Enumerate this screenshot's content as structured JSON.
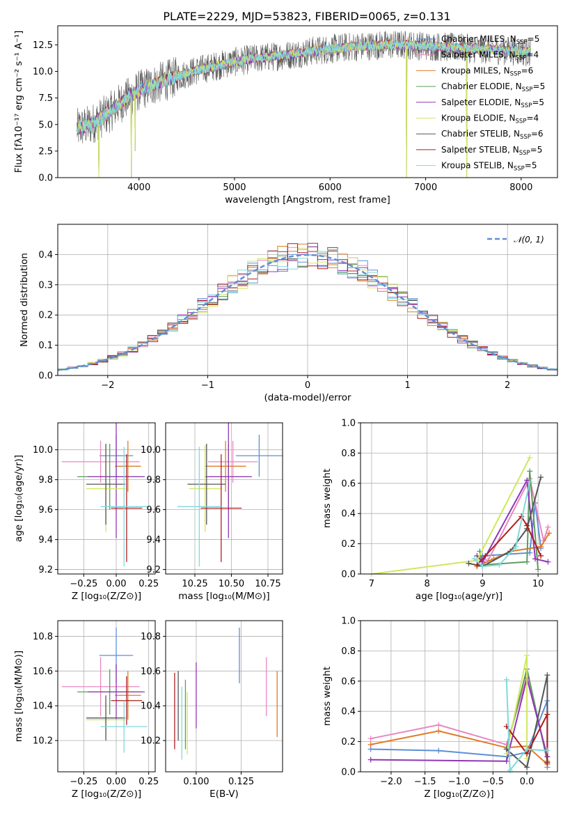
{
  "figure": {
    "title": "PLATE=2229, MJD=53823, FIBERID=0065, z=0.131"
  },
  "models": [
    {
      "label": "Chabrier MILES, N",
      "sub": "SSP",
      "suffix": "=5",
      "color": "#5b8fd8"
    },
    {
      "label": "Salpeter MILES, N",
      "sub": "SSP",
      "suffix": "=4",
      "color": "#e887c0"
    },
    {
      "label": "Kroupa MILES, N",
      "sub": "SSP",
      "suffix": "=6",
      "color": "#e07b2a"
    },
    {
      "label": "Chabrier ELODIE, N",
      "sub": "SSP",
      "suffix": "=5",
      "color": "#5c9b5c"
    },
    {
      "label": "Salpeter ELODIE, N",
      "sub": "SSP",
      "suffix": "=5",
      "color": "#9036b4"
    },
    {
      "label": "Kroupa ELODIE, N",
      "sub": "SSP",
      "suffix": "=4",
      "color": "#cfe85a"
    },
    {
      "label": "Chabrier STELIB, N",
      "sub": "SSP",
      "suffix": "=6",
      "color": "#555555"
    },
    {
      "label": "Salpeter STELIB, N",
      "sub": "SSP",
      "suffix": "=5",
      "color": "#b01c1c"
    },
    {
      "label": "Kroupa STELIB, N",
      "sub": "SSP",
      "suffix": "=5",
      "color": "#7fd9dc"
    }
  ],
  "chart_data": [
    {
      "id": "spectrum",
      "type": "line",
      "title": "PLATE=2229, MJD=53823, FIBERID=0065, z=0.131",
      "xlabel": "wavelength [Angstrom, rest frame]",
      "ylabel": "Flux [fλ10⁻¹⁷ erg cm⁻² s⁻¹ A⁻¹]",
      "xlim": [
        3150,
        8380
      ],
      "ylim": [
        0,
        14.3
      ],
      "xticks": [
        4000,
        5000,
        6000,
        7000,
        8000
      ],
      "yticks": [
        0.0,
        2.5,
        5.0,
        7.5,
        10.0,
        12.5
      ],
      "grid": false,
      "legend": "top-right",
      "continuum": {
        "x": [
          3350,
          3500,
          3600,
          3700,
          3800,
          3900,
          4000,
          4200,
          4400,
          4600,
          4800,
          5000,
          5200,
          5400,
          5600,
          5800,
          6000,
          6200,
          6400,
          6600,
          6800,
          7000,
          7200,
          7400,
          7600,
          7800,
          8000,
          8100
        ],
        "y": [
          4.6,
          5.0,
          5.6,
          6.2,
          7.0,
          7.6,
          8.2,
          8.9,
          9.5,
          10.1,
          10.5,
          10.9,
          11.2,
          11.4,
          11.6,
          11.9,
          12.1,
          12.3,
          12.4,
          12.5,
          12.5,
          12.4,
          12.3,
          12.2,
          12.1,
          12.0,
          11.9,
          11.8
        ]
      },
      "dips": [
        {
          "x": 3580,
          "y": 0.0
        },
        {
          "x": 3920,
          "y": 0.0
        },
        {
          "x": 3960,
          "y": 2.5
        },
        {
          "x": 6800,
          "y": 0.0
        },
        {
          "x": 7430,
          "y": 0.0
        }
      ]
    },
    {
      "id": "residuals",
      "type": "step",
      "xlabel": "(data-model)/error",
      "ylabel": "Normed distribution",
      "xlim": [
        -2.5,
        2.5
      ],
      "ylim": [
        0,
        0.5
      ],
      "xticks": [
        -2,
        -1,
        0,
        1,
        2
      ],
      "yticks": [
        0.0,
        0.1,
        0.2,
        0.3,
        0.4
      ],
      "grid": true,
      "legend": "top-right",
      "legend_label": "𝒩(0, 1)",
      "bin_width": 0.1
    },
    {
      "id": "age-vs-Z",
      "type": "errorbar",
      "xlabel": "Z [log₁₀(Z/Z⊙)]",
      "ylabel": "age  [log₁₀(age/yr)]",
      "xlim": [
        -0.45,
        0.3
      ],
      "ylim": [
        9.17,
        10.18
      ],
      "xticks": [
        -0.25,
        0.0,
        0.25
      ],
      "yticks": [
        9.2,
        9.4,
        9.6,
        9.8,
        10.0
      ],
      "grid": true,
      "points": [
        {
          "x": 0.0,
          "xerr": 0.13,
          "y": 9.96,
          "yerr": 0.14
        },
        {
          "x": -0.12,
          "xerr": 0.3,
          "y": 9.92,
          "yerr": 0.14
        },
        {
          "x": 0.09,
          "xerr": 0.1,
          "y": 9.89,
          "yerr": 0.17
        },
        {
          "x": -0.05,
          "xerr": 0.25,
          "y": 9.82,
          "yerr": 0.22
        },
        {
          "x": 0.0,
          "xerr": 0.22,
          "y": 9.82,
          "yerr": 0.41
        },
        {
          "x": -0.08,
          "xerr": 0.15,
          "y": 9.74,
          "yerr": 0.29
        },
        {
          "x": -0.08,
          "xerr": 0.15,
          "y": 9.77,
          "yerr": 0.27
        },
        {
          "x": 0.08,
          "xerr": 0.12,
          "y": 9.61,
          "yerr": 0.36
        },
        {
          "x": 0.06,
          "xerr": 0.18,
          "y": 9.62,
          "yerr": 0.4
        }
      ]
    },
    {
      "id": "age-vs-mass",
      "type": "errorbar",
      "xlabel": "mass [log₁₀(M/M⊙)]",
      "xlim": [
        10.05,
        10.85
      ],
      "ylim": [
        9.17,
        10.18
      ],
      "xticks": [
        10.25,
        10.5,
        10.75
      ],
      "yticks": [
        9.2,
        9.4,
        9.6,
        9.8,
        10.0
      ],
      "grid": true,
      "points": [
        {
          "x": 10.69,
          "xerr": 0.16,
          "y": 9.96,
          "yerr": 0.14
        },
        {
          "x": 10.51,
          "xerr": 0.17,
          "y": 9.92,
          "yerr": 0.14
        },
        {
          "x": 10.46,
          "xerr": 0.14,
          "y": 9.89,
          "yerr": 0.17
        },
        {
          "x": 10.48,
          "xerr": 0.13,
          "y": 9.82,
          "yerr": 0.22
        },
        {
          "x": 10.48,
          "xerr": 0.16,
          "y": 9.82,
          "yerr": 0.41
        },
        {
          "x": 10.32,
          "xerr": 0.11,
          "y": 9.74,
          "yerr": 0.29
        },
        {
          "x": 10.33,
          "xerr": 0.13,
          "y": 9.77,
          "yerr": 0.27
        },
        {
          "x": 10.43,
          "xerr": 0.14,
          "y": 9.61,
          "yerr": 0.36
        },
        {
          "x": 10.28,
          "xerr": 0.15,
          "y": 9.62,
          "yerr": 0.4
        }
      ]
    },
    {
      "id": "weight-vs-age",
      "type": "line",
      "xlabel": "age  [log₁₀(age/yr)]",
      "ylabel": "mass weight",
      "xlim": [
        6.8,
        10.35
      ],
      "ylim": [
        0,
        1.0
      ],
      "xticks": [
        7,
        8,
        9,
        10
      ],
      "yticks": [
        0.0,
        0.2,
        0.4,
        0.6,
        0.8,
        1.0
      ],
      "grid": true,
      "series": [
        {
          "x": [
            8.9,
            9.0,
            9.85,
            9.95,
            10.05
          ],
          "y": [
            0.05,
            0.12,
            0.14,
            0.47,
            0.17
          ]
        },
        {
          "x": [
            8.95,
            9.1,
            9.85,
            10.1,
            10.18
          ],
          "y": [
            0.1,
            0.09,
            0.63,
            0.22,
            0.31
          ]
        },
        {
          "x": [
            8.9,
            9.2,
            9.5,
            10.05,
            10.2
          ],
          "y": [
            0.05,
            0.1,
            0.15,
            0.18,
            0.27
          ]
        },
        {
          "x": [
            8.95,
            9.0,
            9.8,
            9.85,
            10.0
          ],
          "y": [
            0.15,
            0.06,
            0.08,
            0.68,
            0.03
          ]
        },
        {
          "x": [
            8.9,
            9.0,
            9.8,
            9.95,
            10.18
          ],
          "y": [
            0.12,
            0.08,
            0.62,
            0.1,
            0.08
          ]
        },
        {
          "x": [
            7.0,
            8.9,
            9.85
          ],
          "y": [
            0.0,
            0.09,
            0.77
          ]
        },
        {
          "x": [
            8.75,
            9.0,
            9.5,
            9.8,
            10.05
          ],
          "y": [
            0.07,
            0.05,
            0.15,
            0.3,
            0.64
          ]
        },
        {
          "x": [
            8.9,
            9.05,
            9.7,
            9.8,
            10.05
          ],
          "y": [
            0.06,
            0.12,
            0.38,
            0.32,
            0.12
          ]
        },
        {
          "x": [
            8.85,
            9.0,
            9.3,
            9.6,
            9.85
          ],
          "y": [
            0.1,
            0.05,
            0.06,
            0.18,
            0.61
          ]
        }
      ]
    },
    {
      "id": "mass-vs-Z",
      "type": "errorbar",
      "xlabel": "Z [log₁₀(Z/Z⊙)]",
      "ylabel": "mass [log₁₀(M/M⊙)]",
      "xlim": [
        -0.45,
        0.3
      ],
      "ylim": [
        10.02,
        10.89
      ],
      "xticks": [
        -0.25,
        0.0,
        0.25
      ],
      "yticks": [
        10.2,
        10.4,
        10.6,
        10.8
      ],
      "grid": true,
      "points": [
        {
          "x": 0.0,
          "xerr": 0.13,
          "y": 10.69,
          "yerr": 0.16
        },
        {
          "x": -0.12,
          "xerr": 0.3,
          "y": 10.51,
          "yerr": 0.17
        },
        {
          "x": 0.09,
          "xerr": 0.1,
          "y": 10.46,
          "yerr": 0.14
        },
        {
          "x": -0.05,
          "xerr": 0.25,
          "y": 10.48,
          "yerr": 0.13
        },
        {
          "x": 0.0,
          "xerr": 0.22,
          "y": 10.48,
          "yerr": 0.16
        },
        {
          "x": -0.08,
          "xerr": 0.15,
          "y": 10.32,
          "yerr": 0.11
        },
        {
          "x": -0.08,
          "xerr": 0.15,
          "y": 10.33,
          "yerr": 0.13
        },
        {
          "x": 0.08,
          "xerr": 0.12,
          "y": 10.43,
          "yerr": 0.14
        },
        {
          "x": 0.06,
          "xerr": 0.18,
          "y": 10.28,
          "yerr": 0.15
        }
      ]
    },
    {
      "id": "mass-vs-ebv",
      "type": "errorbar",
      "xlabel": "E(B-V)",
      "xlim": [
        0.083,
        0.148
      ],
      "ylim": [
        10.02,
        10.89
      ],
      "xticks": [
        0.1,
        0.125
      ],
      "yticks": [
        10.2,
        10.4,
        10.6,
        10.8
      ],
      "grid": true,
      "points": [
        {
          "x": 0.124,
          "xerr": 0,
          "y": 10.69,
          "yerr": 0.16
        },
        {
          "x": 0.139,
          "xerr": 0,
          "y": 10.51,
          "yerr": 0.17
        },
        {
          "x": 0.145,
          "xerr": 0,
          "y": 10.41,
          "yerr": 0.19
        },
        {
          "x": 0.094,
          "xerr": 0,
          "y": 10.35,
          "yerr": 0.2
        },
        {
          "x": 0.1,
          "xerr": 0,
          "y": 10.46,
          "yerr": 0.19
        },
        {
          "x": 0.095,
          "xerr": 0,
          "y": 10.3,
          "yerr": 0.18
        },
        {
          "x": 0.09,
          "xerr": 0,
          "y": 10.4,
          "yerr": 0.2
        },
        {
          "x": 0.088,
          "xerr": 0,
          "y": 10.37,
          "yerr": 0.22
        },
        {
          "x": 0.092,
          "xerr": 0,
          "y": 10.3,
          "yerr": 0.21
        }
      ]
    },
    {
      "id": "weight-vs-Z",
      "type": "line",
      "xlabel": "Z [log₁₀(Z/Z⊙)]",
      "ylabel": "mass weight",
      "xlim": [
        -2.45,
        0.45
      ],
      "ylim": [
        0,
        1.0
      ],
      "xticks": [
        -2.0,
        -1.5,
        -1.0,
        -0.5,
        0.0
      ],
      "yticks": [
        0.0,
        0.2,
        0.4,
        0.6,
        0.8,
        1.0
      ],
      "grid": true,
      "series": [
        {
          "x": [
            -2.3,
            -1.3,
            -0.3,
            0.0,
            0.3,
            0.3
          ],
          "y": [
            0.15,
            0.14,
            0.1,
            0.13,
            0.47,
            0.03
          ]
        },
        {
          "x": [
            -2.3,
            -1.3,
            -0.3,
            0.0,
            0.3
          ],
          "y": [
            0.22,
            0.31,
            0.18,
            0.63,
            0.1
          ]
        },
        {
          "x": [
            -2.3,
            -1.3,
            -0.3,
            0.0,
            0.3
          ],
          "y": [
            0.18,
            0.27,
            0.16,
            0.17,
            0.05
          ]
        },
        {
          "x": [
            -0.3,
            0.0,
            0.3
          ],
          "y": [
            0.15,
            0.68,
            0.07
          ]
        },
        {
          "x": [
            -2.3,
            -0.3,
            0.0,
            0.3
          ],
          "y": [
            0.08,
            0.07,
            0.62,
            0.1
          ]
        },
        {
          "x": [
            -0.3,
            0.0,
            0.0
          ],
          "y": [
            0.12,
            0.77,
            0.09
          ]
        },
        {
          "x": [
            -0.3,
            0.0,
            0.3,
            0.3
          ],
          "y": [
            0.15,
            0.03,
            0.64,
            0.06
          ]
        },
        {
          "x": [
            -0.3,
            0.0,
            0.3,
            0.3
          ],
          "y": [
            0.3,
            0.12,
            0.38,
            0.06
          ]
        },
        {
          "x": [
            -0.3,
            -0.25,
            0.0,
            0.3
          ],
          "y": [
            0.61,
            0.01,
            0.15,
            0.14
          ]
        }
      ]
    }
  ]
}
